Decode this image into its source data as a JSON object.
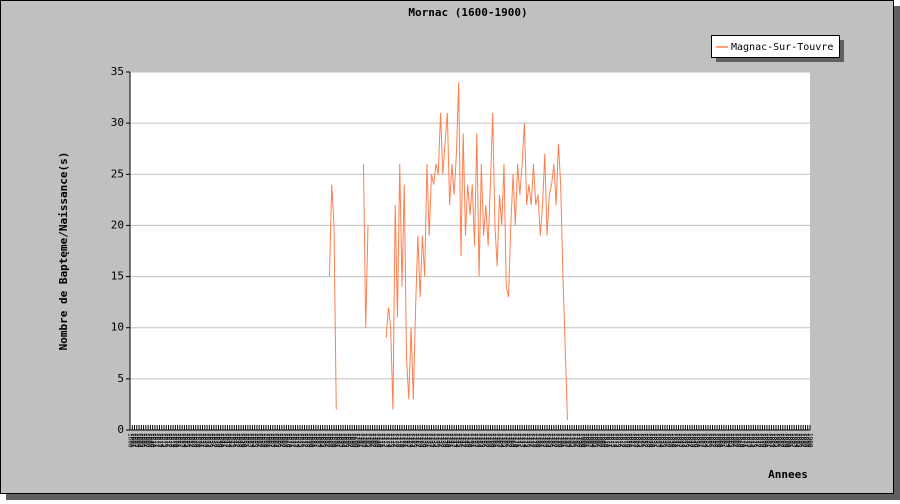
{
  "chart_data": {
    "type": "line",
    "title": "Mornac (1600-1900)",
    "x_label": "Annees",
    "y_label": "Nombre de Baptęme/Naissance(s)",
    "legend": "top-right",
    "grid": true,
    "xlim": [
      1600,
      1900
    ],
    "ylim": [
      0,
      35
    ],
    "yticks": [
      0,
      5,
      10,
      15,
      20,
      25,
      30,
      35
    ],
    "xticks": [
      1600,
      1601,
      1602,
      1603,
      1604,
      1605,
      1606,
      1607,
      1608,
      1609,
      1610,
      1611,
      1612,
      1613,
      1614,
      1615,
      1616,
      1617,
      1618,
      1619,
      1620,
      1621,
      1622,
      1623,
      1624,
      1625,
      1626,
      1627,
      1628,
      1629,
      1630,
      1631,
      1632,
      1633,
      1634,
      1635,
      1636,
      1637,
      1638,
      1639,
      1640,
      1641,
      1642,
      1643,
      1644,
      1645,
      1646,
      1647,
      1648,
      1649,
      1650,
      1651,
      1652,
      1653,
      1654,
      1655,
      1656,
      1657,
      1658,
      1659,
      1660,
      1661,
      1662,
      1663,
      1664,
      1665,
      1666,
      1667,
      1668,
      1669,
      1670,
      1671,
      1672,
      1673,
      1674,
      1675,
      1676,
      1677,
      1678,
      1679,
      1680,
      1681,
      1682,
      1683,
      1684,
      1685,
      1686,
      1687,
      1688,
      1689,
      1690,
      1691,
      1692,
      1693,
      1694,
      1695,
      1696,
      1697,
      1698,
      1699,
      1700,
      1701,
      1702,
      1703,
      1704,
      1705,
      1706,
      1707,
      1708,
      1709,
      1710,
      1711,
      1712,
      1713,
      1714,
      1715,
      1716,
      1717,
      1718,
      1719,
      1720,
      1721,
      1722,
      1723,
      1724,
      1725,
      1726,
      1727,
      1728,
      1729,
      1730,
      1731,
      1732,
      1733,
      1734,
      1735,
      1736,
      1737,
      1738,
      1739,
      1740,
      1741,
      1742,
      1743,
      1744,
      1745,
      1746,
      1747,
      1748,
      1749,
      1750,
      1751,
      1752,
      1753,
      1754,
      1755,
      1756,
      1757,
      1758,
      1759,
      1760,
      1761,
      1762,
      1763,
      1764,
      1765,
      1766,
      1767,
      1768,
      1769,
      1770,
      1771,
      1772,
      1773,
      1774,
      1775,
      1776,
      1777,
      1778,
      1779,
      1780,
      1781,
      1782,
      1783,
      1784,
      1785,
      1786,
      1787,
      1788,
      1789,
      1790,
      1791,
      1792,
      1793,
      1794,
      1795,
      1796,
      1797,
      1798,
      1799,
      1800,
      1801,
      1802,
      1803,
      1804,
      1805,
      1806,
      1807,
      1808,
      1809,
      1810,
      1811,
      1812,
      1813,
      1814,
      1815,
      1816,
      1817,
      1818,
      1819,
      1820,
      1821,
      1822,
      1823,
      1824,
      1825,
      1826,
      1827,
      1828,
      1829,
      1830,
      1831,
      1832,
      1833,
      1834,
      1835,
      1836,
      1837,
      1838,
      1839,
      1840,
      1841,
      1842,
      1843,
      1844,
      1845,
      1846,
      1847,
      1848,
      1849,
      1850,
      1851,
      1852,
      1853,
      1854,
      1855,
      1856,
      1857,
      1858,
      1859,
      1860,
      1861,
      1862,
      1863,
      1864,
      1865,
      1866,
      1867,
      1868,
      1869,
      1870,
      1871,
      1872,
      1873,
      1874,
      1875,
      1876,
      1877,
      1878,
      1879,
      1880,
      1881,
      1882,
      1883,
      1884,
      1885,
      1886,
      1887,
      1888,
      1889,
      1890,
      1891,
      1892,
      1893,
      1894,
      1895,
      1896,
      1897,
      1898,
      1899,
      1900
    ],
    "x": [
      1688,
      1689,
      1690,
      1691,
      1692,
      1693,
      1694,
      1695,
      1696,
      1697,
      1698,
      1699,
      1700,
      1701,
      1702,
      1703,
      1704,
      1705,
      1706,
      1707,
      1708,
      1709,
      1710,
      1711,
      1712,
      1713,
      1714,
      1715,
      1716,
      1717,
      1718,
      1719,
      1720,
      1721,
      1722,
      1723,
      1724,
      1725,
      1726,
      1727,
      1728,
      1729,
      1730,
      1731,
      1732,
      1733,
      1734,
      1735,
      1736,
      1737,
      1738,
      1739,
      1740,
      1741,
      1742,
      1743,
      1744,
      1745,
      1746,
      1747,
      1748,
      1749,
      1750,
      1751,
      1752,
      1753,
      1754,
      1755,
      1756,
      1757,
      1758,
      1759,
      1760,
      1761,
      1762,
      1763,
      1764,
      1765,
      1766,
      1767,
      1768,
      1769,
      1770,
      1771,
      1772,
      1773,
      1774,
      1775,
      1776,
      1777,
      1778,
      1779,
      1780,
      1781,
      1782,
      1783,
      1784,
      1785,
      1786,
      1787,
      1788,
      1789,
      1790,
      1791,
      1792,
      1793
    ],
    "series": [
      {
        "name": "Magnac-Sur-Touvre",
        "color": "#ff7f50",
        "values": [
          15,
          24,
          20,
          2,
          null,
          null,
          null,
          null,
          null,
          null,
          null,
          null,
          null,
          null,
          null,
          26,
          10,
          20,
          null,
          null,
          null,
          null,
          null,
          null,
          null,
          9,
          12,
          10,
          2,
          22,
          11,
          26,
          14,
          24,
          7,
          3,
          10,
          3,
          12,
          19,
          13,
          19,
          15,
          26,
          19,
          25,
          24,
          26,
          25,
          31,
          25,
          28,
          31,
          22,
          26,
          23,
          27,
          34,
          17,
          29,
          19,
          24,
          21,
          24,
          18,
          29,
          15,
          26,
          19,
          22,
          18,
          24,
          31,
          20,
          16,
          23,
          20,
          26,
          14,
          13,
          20,
          25,
          20,
          26,
          23,
          26,
          30,
          22,
          24,
          22,
          26,
          22,
          23,
          19,
          22,
          27,
          19,
          23,
          24,
          26,
          22,
          28,
          24,
          15,
          8,
          1
        ]
      }
    ]
  }
}
